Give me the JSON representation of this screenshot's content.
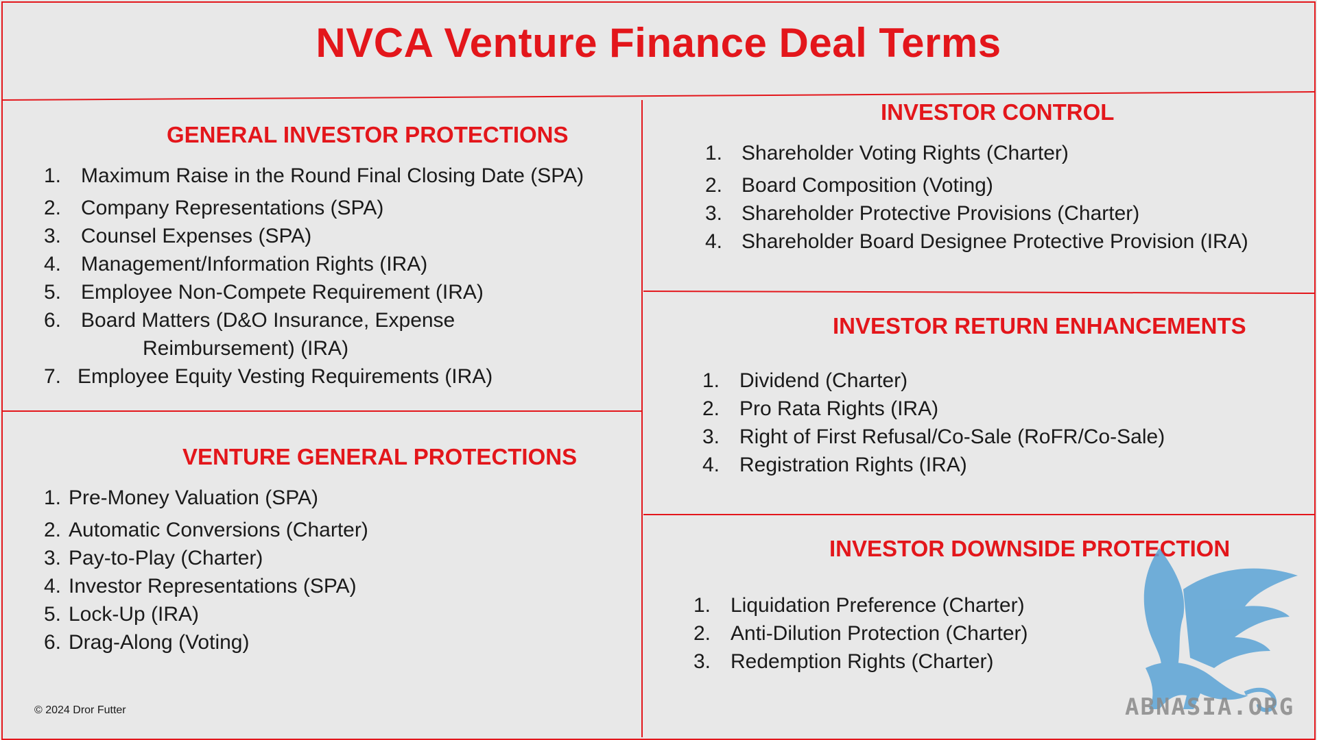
{
  "title": "NVCA Venture Finance Deal Terms",
  "colors": {
    "accent": "#e3161b",
    "background": "#e8e8e8",
    "logo_blue": "#5aa3d6"
  },
  "general_investor_protections": {
    "heading": "GENERAL INVESTOR PROTECTIONS",
    "items": [
      {
        "num": "1.",
        "text": "Maximum Raise in the Round Final Closing Date (SPA)"
      },
      {
        "num": "2.",
        "text": "Company Representations (SPA)"
      },
      {
        "num": "3.",
        "text": "Counsel Expenses (SPA)"
      },
      {
        "num": "4.",
        "text": "Management/Information Rights (IRA)"
      },
      {
        "num": "5.",
        "text": "Employee Non-Compete Requirement (IRA)"
      },
      {
        "num": "6.",
        "text": "Board Matters  (D&O Insurance, Expense",
        "cont": "Reimbursement) (IRA)"
      },
      {
        "num": "7.",
        "text": "Employee Equity Vesting Requirements (IRA)"
      }
    ]
  },
  "venture_general_protections": {
    "heading": "VENTURE GENERAL PROTECTIONS",
    "items": [
      {
        "num": "1.",
        "text": "Pre-Money Valuation (SPA)"
      },
      {
        "num": "2.",
        "text": "Automatic Conversions (Charter)"
      },
      {
        "num": "3.",
        "text": "Pay-to-Play (Charter)"
      },
      {
        "num": "4.",
        "text": "Investor Representations (SPA)"
      },
      {
        "num": "5.",
        "text": "Lock-Up (IRA)"
      },
      {
        "num": "6.",
        "text": "Drag-Along (Voting)"
      }
    ]
  },
  "investor_control": {
    "heading": "INVESTOR CONTROL",
    "items": [
      {
        "num": "1.",
        "text": "Shareholder Voting Rights (Charter)"
      },
      {
        "num": "2.",
        "text": "Board Composition (Voting)"
      },
      {
        "num": "3.",
        "text": "Shareholder Protective Provisions (Charter)"
      },
      {
        "num": "4.",
        "text": "Shareholder Board Designee Protective Provision (IRA)"
      }
    ]
  },
  "investor_return_enhancements": {
    "heading": "INVESTOR RETURN ENHANCEMENTS",
    "items": [
      {
        "num": "1.",
        "text": "Dividend (Charter)"
      },
      {
        "num": "2.",
        "text": "Pro Rata Rights (IRA)"
      },
      {
        "num": "3.",
        "text": "Right of First Refusal/Co-Sale (RoFR/Co-Sale)"
      },
      {
        "num": "4.",
        "text": "Registration Rights (IRA)"
      }
    ]
  },
  "investor_downside_protection": {
    "heading": "INVESTOR DOWNSIDE PROTECTION",
    "items": [
      {
        "num": "1.",
        "text": "Liquidation Preference (Charter)"
      },
      {
        "num": "2.",
        "text": "Anti-Dilution Protection (Charter)"
      },
      {
        "num": "3.",
        "text": "Redemption Rights (Charter)"
      }
    ]
  },
  "copyright": "© 2024 Dror Futter",
  "watermark": {
    "text": "ABNASIA.ORG",
    "icon": "griffin-logo-icon"
  }
}
